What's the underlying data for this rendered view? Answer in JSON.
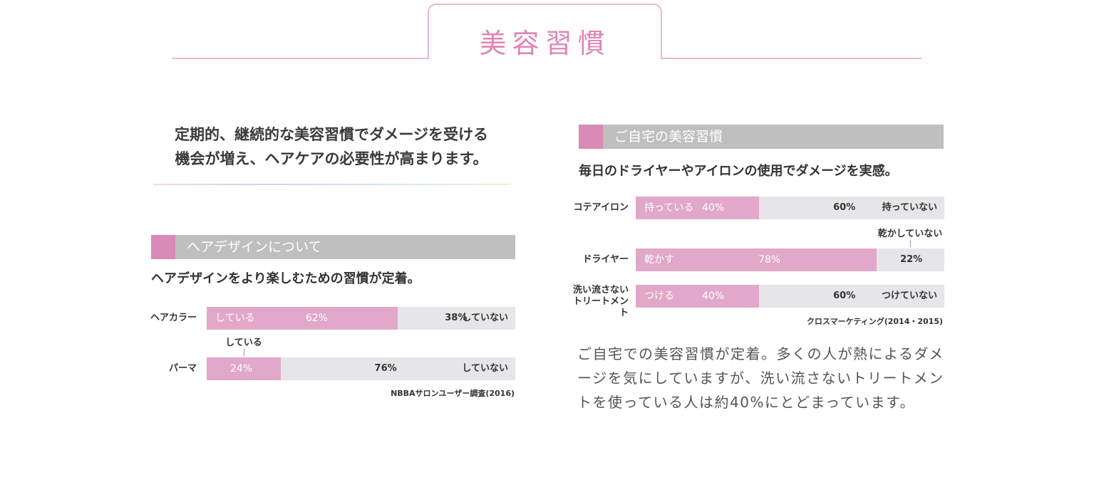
{
  "header": {
    "title": "美容習慣"
  },
  "intro": {
    "line1": "定期的、継続的な美容習慣でダメージを受ける",
    "line2": "機会が増え、ヘアケアの必要性が高まります。"
  },
  "colors": {
    "accent": "#d98ab6",
    "bar_fill": "#e1a8c9",
    "bar_bg": "#e6e6e8",
    "section_bar": "#bfbfbf"
  },
  "chart_data": [
    {
      "type": "bar",
      "section_title": "ヘアデザインについて",
      "title": "ヘアデザインをより楽しむための習慣が定着。",
      "source": "NBBAサロンユーザー調査(2016)",
      "rows": [
        {
          "category": "ヘアカラー",
          "yes_label": "している",
          "no_label": "していない",
          "yes": 62,
          "no": 38,
          "yes_text": "62%",
          "no_text": "38%",
          "callout": ""
        },
        {
          "category": "パーマ",
          "yes_label": "",
          "no_label": "していない",
          "yes": 24,
          "no": 76,
          "yes_text": "24%",
          "no_text": "76%",
          "callout": "している"
        }
      ]
    },
    {
      "type": "bar",
      "section_title": "ご自宅の美容習慣",
      "title": "毎日のドライヤーやアイロンの使用でダメージを実感。",
      "source": "クロスマーケティング(2014・2015)",
      "rows": [
        {
          "category": "コテアイロン",
          "yes_label": "持っている",
          "no_label": "持っていない",
          "yes": 40,
          "no": 60,
          "yes_text": "40%",
          "no_text": "60%",
          "callout": ""
        },
        {
          "category": "ドライヤー",
          "yes_label": "乾かす",
          "no_label": "",
          "yes": 78,
          "no": 22,
          "yes_text": "78%",
          "no_text": "22%",
          "callout": "乾かしていない"
        },
        {
          "category": "洗い流さない\nトリートメント",
          "yes_label": "つける",
          "no_label": "つけていない",
          "yes": 40,
          "no": 60,
          "yes_text": "40%",
          "no_text": "60%",
          "callout": ""
        }
      ]
    }
  ],
  "paragraph": "ご自宅での美容習慣が定着。多くの人が熱によるダメージを気にしていますが、洗い流さないトリートメントを使っている人は約40%にとどまっています。"
}
